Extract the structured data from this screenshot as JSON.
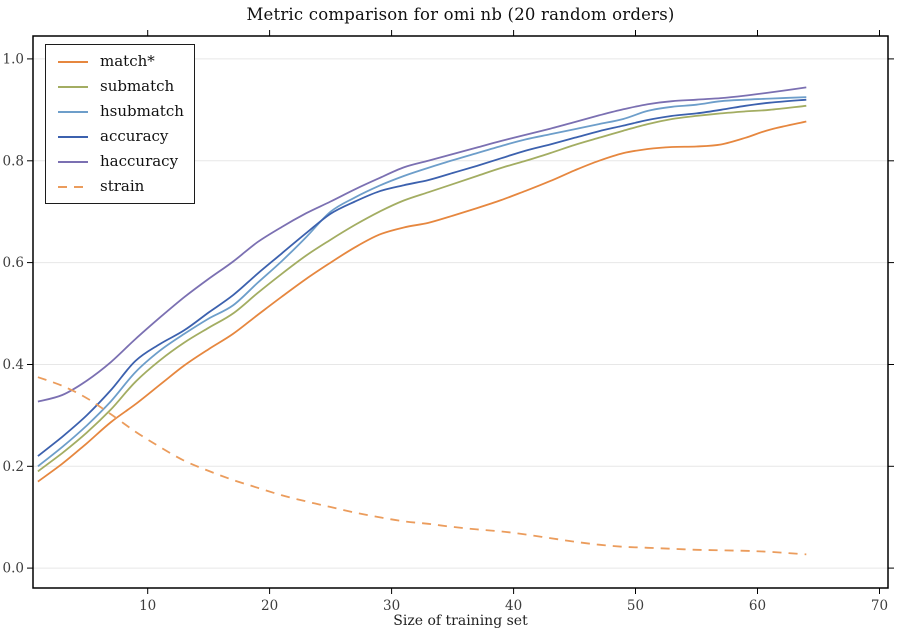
{
  "chart_data": {
    "type": "line",
    "title": "Metric comparison for omi nb (20 random orders)",
    "xlabel": "Size of training set",
    "ylabel": "",
    "xlim": [
      0.6,
      70.7
    ],
    "ylim": [
      -0.039,
      1.045
    ],
    "xticks": [
      10,
      20,
      30,
      40,
      50,
      60,
      70
    ],
    "yticks": [
      0.0,
      0.2,
      0.4,
      0.6,
      0.8,
      1.0
    ],
    "grid": "horizontal-only",
    "grid_color": "#e7e7e7",
    "spine_color": "#000000",
    "tick_label_color": "#3d3d3d",
    "legend_position": "upper-left",
    "x": [
      1,
      3,
      5,
      7,
      9,
      11,
      13,
      15,
      17,
      19,
      21,
      23,
      25,
      27,
      29,
      31,
      33,
      35,
      37,
      39,
      41,
      43,
      45,
      47,
      49,
      51,
      53,
      55,
      57,
      59,
      61,
      64
    ],
    "series": [
      {
        "name": "match*",
        "color": "#e6873f",
        "style": "solid",
        "values": [
          0.17,
          0.205,
          0.245,
          0.287,
          0.322,
          0.36,
          0.398,
          0.43,
          0.46,
          0.497,
          0.533,
          0.568,
          0.6,
          0.63,
          0.655,
          0.669,
          0.678,
          0.692,
          0.707,
          0.723,
          0.741,
          0.76,
          0.781,
          0.8,
          0.815,
          0.823,
          0.827,
          0.828,
          0.832,
          0.845,
          0.861,
          0.877
        ]
      },
      {
        "name": "submatch",
        "color": "#a3ad62",
        "style": "solid",
        "values": [
          0.19,
          0.226,
          0.266,
          0.312,
          0.366,
          0.408,
          0.443,
          0.472,
          0.5,
          0.54,
          0.578,
          0.614,
          0.645,
          0.674,
          0.7,
          0.722,
          0.738,
          0.754,
          0.77,
          0.786,
          0.8,
          0.815,
          0.831,
          0.845,
          0.859,
          0.872,
          0.882,
          0.888,
          0.893,
          0.897,
          0.9,
          0.908
        ]
      },
      {
        "name": "hsubmatch",
        "color": "#6d9eca",
        "style": "solid",
        "values": [
          0.2,
          0.238,
          0.28,
          0.328,
          0.385,
          0.427,
          0.46,
          0.49,
          0.516,
          0.56,
          0.603,
          0.65,
          0.7,
          0.728,
          0.751,
          0.77,
          0.786,
          0.801,
          0.815,
          0.829,
          0.842,
          0.852,
          0.862,
          0.872,
          0.882,
          0.898,
          0.906,
          0.91,
          0.917,
          0.92,
          0.922,
          0.925
        ]
      },
      {
        "name": "accuracy",
        "color": "#3c61ae",
        "style": "solid",
        "values": [
          0.22,
          0.258,
          0.3,
          0.35,
          0.407,
          0.44,
          0.467,
          0.502,
          0.536,
          0.578,
          0.618,
          0.658,
          0.696,
          0.72,
          0.74,
          0.752,
          0.762,
          0.776,
          0.79,
          0.805,
          0.82,
          0.832,
          0.845,
          0.858,
          0.869,
          0.88,
          0.888,
          0.893,
          0.9,
          0.908,
          0.914,
          0.92
        ]
      },
      {
        "name": "haccuracy",
        "color": "#7b70b2",
        "style": "solid",
        "values": [
          0.327,
          0.34,
          0.368,
          0.405,
          0.45,
          0.492,
          0.532,
          0.568,
          0.602,
          0.64,
          0.67,
          0.697,
          0.72,
          0.744,
          0.766,
          0.787,
          0.8,
          0.813,
          0.826,
          0.839,
          0.851,
          0.863,
          0.876,
          0.889,
          0.901,
          0.911,
          0.917,
          0.92,
          0.923,
          0.928,
          0.934,
          0.944
        ]
      },
      {
        "name": "strain",
        "color": "#eb9c5c",
        "style": "dashed",
        "values": [
          0.375,
          0.358,
          0.334,
          0.302,
          0.268,
          0.238,
          0.211,
          0.191,
          0.173,
          0.158,
          0.143,
          0.131,
          0.12,
          0.109,
          0.1,
          0.092,
          0.087,
          0.081,
          0.076,
          0.072,
          0.066,
          0.059,
          0.052,
          0.046,
          0.042,
          0.04,
          0.038,
          0.036,
          0.035,
          0.034,
          0.032,
          0.027
        ]
      }
    ]
  }
}
